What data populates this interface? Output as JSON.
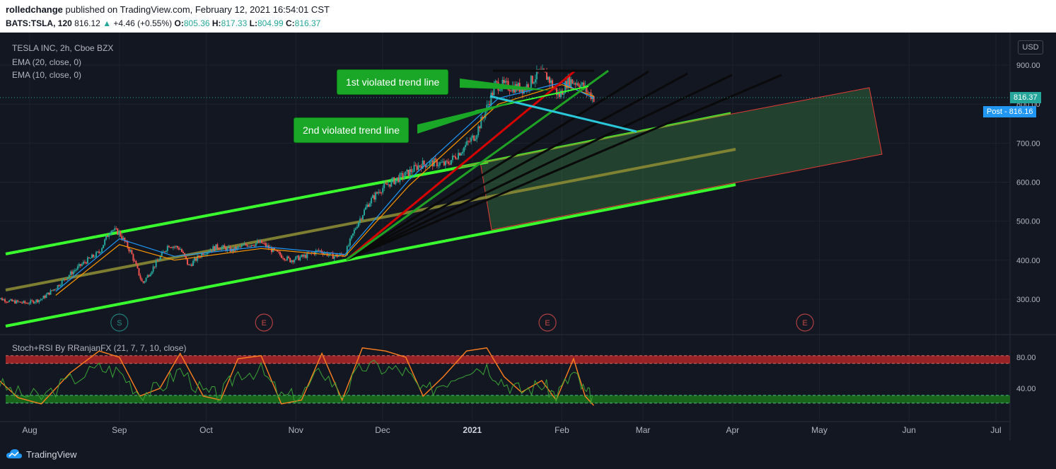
{
  "header": {
    "author": "rolledchange",
    "published": "published on TradingView.com, February 12, 2021 16:54:01 CST",
    "symbol": "BATS:TSLA, 120",
    "last": "816.12",
    "change": "+4.46 (+0.55%)",
    "o_label": "O:",
    "o": "805.36",
    "h_label": "H:",
    "h": "817.33",
    "l_label": "L:",
    "l": "804.99",
    "c_label": "C:",
    "c": "816.37"
  },
  "legend": {
    "title": "TESLA INC, 2h, Cboe BZX",
    "ema20": "EMA (20, close, 0)",
    "ema10": "EMA (10, close, 0)"
  },
  "currency": "USD",
  "price_tags": {
    "current": "816.37",
    "post_label": "Post",
    "post": "816.16"
  },
  "annotations": {
    "first": "1st violated trend line",
    "second": "2nd violated trend line"
  },
  "events": [
    "S",
    "E",
    "E",
    "E"
  ],
  "oscillator": {
    "title": "Stoch+RSI By RRanjanFX (21, 7, 7, 10, close)",
    "ticks": [
      "80.00",
      "40.00"
    ]
  },
  "footer": {
    "brand": "TradingView"
  },
  "colors": {
    "up": "#26a69a",
    "down": "#ef5350",
    "channel": "#39ff2e",
    "ema20": "#ff9800",
    "ema10": "#2196f3"
  },
  "chart_data": [
    {
      "type": "line",
      "title": "TESLA INC, 2h, Cboe BZX",
      "xlabel": "",
      "ylabel": "USD",
      "x_ticks": [
        "Aug",
        "Sep",
        "Oct",
        "Nov",
        "Dec",
        "2021",
        "Feb",
        "Mar",
        "Apr",
        "May",
        "Jun",
        "Jul"
      ],
      "y_ticks": [
        "900.00",
        "800.00",
        "700.00",
        "600.00",
        "500.00",
        "400.00",
        "300.00"
      ],
      "ylim": [
        225,
        935
      ],
      "price_path": [
        [
          "2020-07-20",
          305
        ],
        [
          "2020-07-25",
          295
        ],
        [
          "2020-07-31",
          290
        ],
        [
          "2020-08-05",
          300
        ],
        [
          "2020-08-10",
          330
        ],
        [
          "2020-08-15",
          365
        ],
        [
          "2020-08-20",
          395
        ],
        [
          "2020-08-25",
          420
        ],
        [
          "2020-08-29",
          480
        ],
        [
          "2020-09-01",
          470
        ],
        [
          "2020-09-05",
          420
        ],
        [
          "2020-09-09",
          340
        ],
        [
          "2020-09-13",
          385
        ],
        [
          "2020-09-18",
          440
        ],
        [
          "2020-09-22",
          430
        ],
        [
          "2020-09-25",
          385
        ],
        [
          "2020-09-30",
          420
        ],
        [
          "2020-10-05",
          435
        ],
        [
          "2020-10-10",
          425
        ],
        [
          "2020-10-15",
          440
        ],
        [
          "2020-10-20",
          445
        ],
        [
          "2020-10-25",
          420
        ],
        [
          "2020-10-30",
          400
        ],
        [
          "2020-11-04",
          410
        ],
        [
          "2020-11-09",
          425
        ],
        [
          "2020-11-14",
          410
        ],
        [
          "2020-11-18",
          415
        ],
        [
          "2020-11-22",
          490
        ],
        [
          "2020-11-26",
          545
        ],
        [
          "2020-11-30",
          580
        ],
        [
          "2020-12-04",
          600
        ],
        [
          "2020-12-09",
          620
        ],
        [
          "2020-12-14",
          645
        ],
        [
          "2020-12-19",
          650
        ],
        [
          "2020-12-23",
          645
        ],
        [
          "2020-12-28",
          680
        ],
        [
          "2021-01-02",
          720
        ],
        [
          "2021-01-06",
          790
        ],
        [
          "2021-01-09",
          850
        ],
        [
          "2021-01-14",
          845
        ],
        [
          "2021-01-19",
          840
        ],
        [
          "2021-01-24",
          880
        ],
        [
          "2021-01-27",
          870
        ],
        [
          "2021-01-31",
          820
        ],
        [
          "2021-02-03",
          860
        ],
        [
          "2021-02-07",
          855
        ],
        [
          "2021-02-10",
          830
        ],
        [
          "2021-02-12",
          816.37
        ]
      ],
      "series": [
        {
          "name": "EMA (20, close, 0)",
          "values": [
            [
              "2020-08-10",
              310
            ],
            [
              "2020-09-01",
              440
            ],
            [
              "2020-09-20",
              400
            ],
            [
              "2020-10-20",
              430
            ],
            [
              "2020-11-18",
              410
            ],
            [
              "2020-12-10",
              590
            ],
            [
              "2021-01-10",
              800
            ],
            [
              "2021-02-01",
              850
            ],
            [
              "2021-02-12",
              820
            ]
          ]
        },
        {
          "name": "EMA (10, close, 0)",
          "values": [
            [
              "2020-08-10",
              320
            ],
            [
              "2020-09-01",
              455
            ],
            [
              "2020-09-20",
              410
            ],
            [
              "2020-10-20",
              435
            ],
            [
              "2020-11-18",
              415
            ],
            [
              "2020-12-10",
              605
            ],
            [
              "2021-01-10",
              815
            ],
            [
              "2021-02-01",
              855
            ],
            [
              "2021-02-12",
              815
            ]
          ]
        }
      ],
      "current_price": 816.37,
      "post_price": 816.16,
      "events": [
        {
          "label": "S",
          "date": "2020-09-01"
        },
        {
          "label": "E",
          "date": "2020-10-21"
        },
        {
          "label": "E",
          "date": "2021-01-27"
        },
        {
          "label": "E",
          "date": "2021-04-26"
        }
      ]
    },
    {
      "type": "line",
      "title": "Stoch+RSI By RRanjanFX (21, 7, 7, 10, close)",
      "ylim": [
        15,
        100
      ],
      "y_ticks": [
        "80.00",
        "40.00"
      ],
      "bands": [
        [
          72,
          82
        ],
        [
          21,
          31
        ]
      ],
      "series": [
        {
          "name": "stoch",
          "values": [
            [
              "2020-07-20",
              55
            ],
            [
              "2020-07-28",
              28
            ],
            [
              "2020-08-05",
              20
            ],
            [
              "2020-08-15",
              60
            ],
            [
              "2020-08-25",
              88
            ],
            [
              "2020-09-01",
              80
            ],
            [
              "2020-09-08",
              30
            ],
            [
              "2020-09-15",
              40
            ],
            [
              "2020-09-22",
              85
            ],
            [
              "2020-09-30",
              30
            ],
            [
              "2020-10-06",
              25
            ],
            [
              "2020-10-12",
              78
            ],
            [
              "2020-10-20",
              82
            ],
            [
              "2020-10-27",
              20
            ],
            [
              "2020-11-03",
              25
            ],
            [
              "2020-11-10",
              85
            ],
            [
              "2020-11-17",
              25
            ],
            [
              "2020-11-24",
              92
            ],
            [
              "2020-12-02",
              88
            ],
            [
              "2020-12-09",
              80
            ],
            [
              "2020-12-15",
              30
            ],
            [
              "2020-12-22",
              55
            ],
            [
              "2020-12-30",
              88
            ],
            [
              "2021-01-06",
              92
            ],
            [
              "2021-01-12",
              55
            ],
            [
              "2021-01-18",
              35
            ],
            [
              "2021-01-25",
              50
            ],
            [
              "2021-01-30",
              25
            ],
            [
              "2021-02-05",
              78
            ],
            [
              "2021-02-09",
              30
            ],
            [
              "2021-02-12",
              18
            ]
          ]
        }
      ]
    }
  ]
}
